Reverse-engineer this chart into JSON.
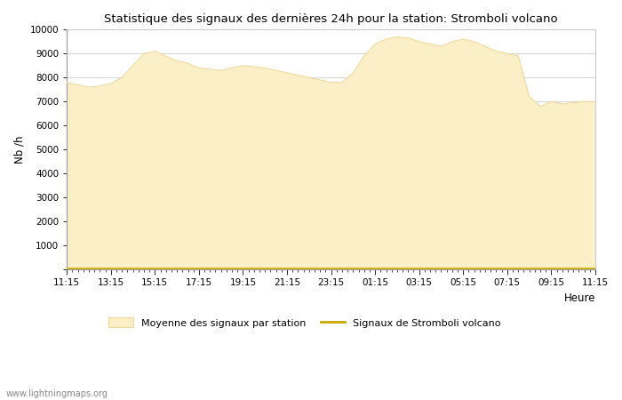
{
  "title": "Statistique des signaux des dernières 24h pour la station: Stromboli volcano",
  "xlabel": "Heure",
  "ylabel": "Nb /h",
  "ylim": [
    0,
    10000
  ],
  "yticks": [
    0,
    1000,
    2000,
    3000,
    4000,
    5000,
    6000,
    7000,
    8000,
    9000,
    10000
  ],
  "xtick_labels": [
    "11:15",
    "13:15",
    "15:15",
    "17:15",
    "19:15",
    "21:15",
    "23:15",
    "01:15",
    "03:15",
    "05:15",
    "07:15",
    "09:15",
    "11:15"
  ],
  "fill_color": "#faefc7",
  "fill_edge_color": "#f0d898",
  "line_color": "#c8a800",
  "background_color": "#ffffff",
  "grid_color": "#cccccc",
  "watermark": "www.lightningmaps.org",
  "legend_fill_label": "Moyenne des signaux par station",
  "legend_line_label": "Signaux de Stromboli volcano",
  "x_values": [
    0,
    1,
    2,
    3,
    4,
    5,
    6,
    7,
    8,
    9,
    10,
    11,
    12,
    13,
    14,
    15,
    16,
    17,
    18,
    19,
    20,
    21,
    22,
    23,
    24,
    25,
    26,
    27,
    28,
    29,
    30,
    31,
    32,
    33,
    34,
    35,
    36,
    37,
    38,
    39,
    40,
    41,
    42,
    43,
    44,
    45,
    46,
    47,
    48
  ],
  "avg_values": [
    7800,
    7700,
    7600,
    7650,
    7750,
    8000,
    8500,
    9000,
    9100,
    8900,
    8700,
    8600,
    8400,
    8350,
    8300,
    8400,
    8500,
    8450,
    8400,
    8300,
    8200,
    8100,
    8000,
    7900,
    7800,
    7800,
    8200,
    8900,
    9400,
    9600,
    9700,
    9650,
    9500,
    9400,
    9300,
    9500,
    9600,
    9500,
    9300,
    9100,
    9000,
    8900,
    7200,
    6800,
    7000,
    6900,
    6950,
    7000,
    7000
  ],
  "stromboli_values": [
    50,
    50,
    50,
    50,
    50,
    50,
    50,
    50,
    50,
    50,
    50,
    50,
    50,
    50,
    50,
    50,
    50,
    50,
    50,
    50,
    50,
    50,
    50,
    50,
    50,
    50,
    50,
    50,
    50,
    50,
    50,
    50,
    50,
    50,
    50,
    50,
    50,
    50,
    50,
    50,
    50,
    50,
    50,
    50,
    50,
    50,
    50,
    50,
    50
  ]
}
